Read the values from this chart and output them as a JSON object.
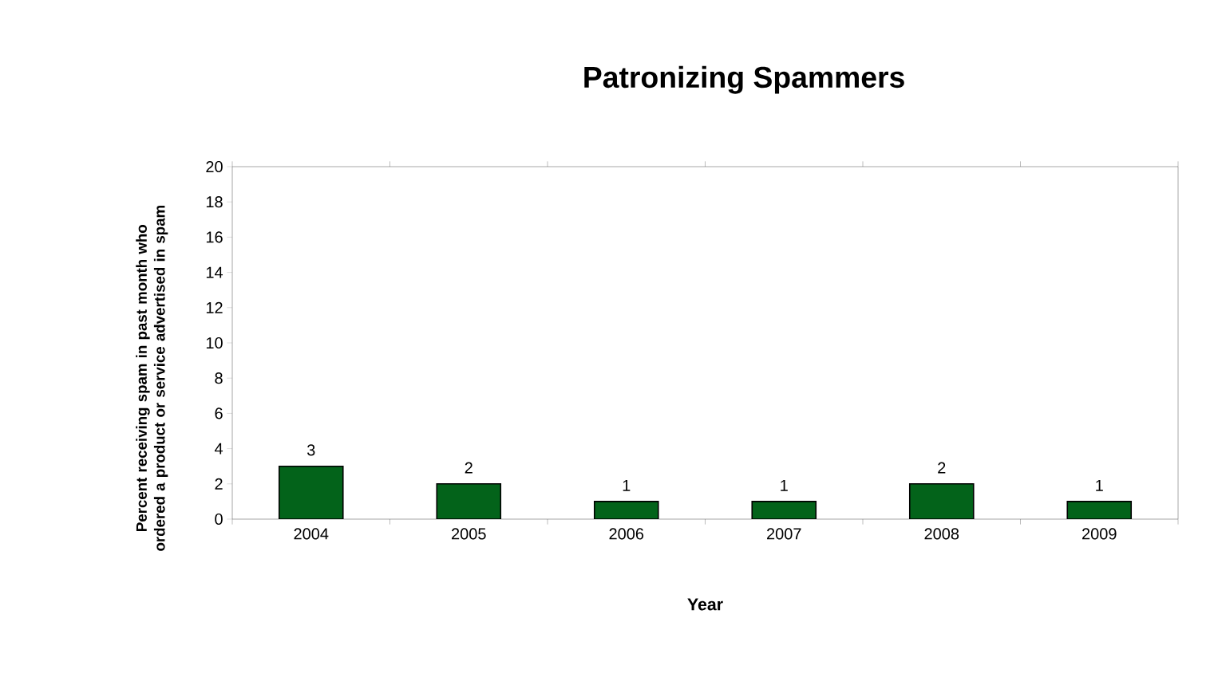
{
  "chart_data": {
    "type": "bar",
    "title": "Patronizing Spammers",
    "xlabel": "Year",
    "ylabel": "Percent receiving spam in past month who ordered a product or service advertised in spam",
    "categories": [
      "2004",
      "2005",
      "2006",
      "2007",
      "2008",
      "2009"
    ],
    "values": [
      3,
      2,
      1,
      1,
      2,
      1
    ],
    "color": "#03631a",
    "ylim": [
      0,
      20
    ],
    "yticks": [
      0,
      2,
      4,
      6,
      8,
      10,
      12,
      14,
      16,
      18,
      20
    ],
    "grid": false,
    "data_labels": true
  }
}
